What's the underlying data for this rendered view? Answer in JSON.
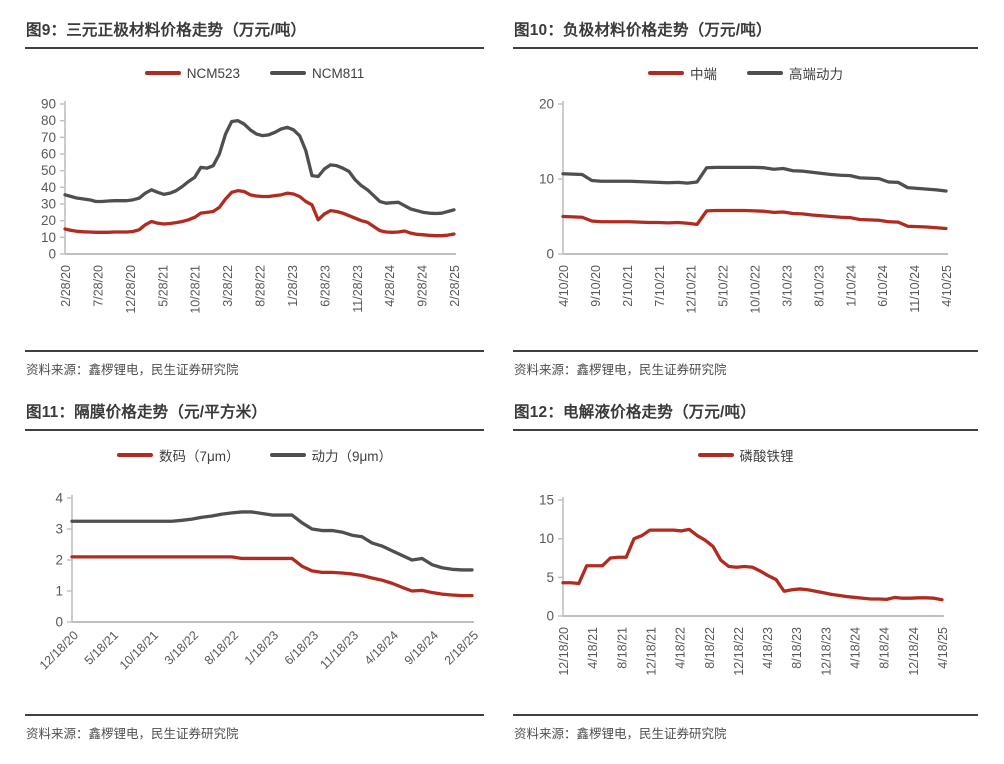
{
  "colors": {
    "red_series": "#B22B20",
    "dark_series": "#4F4F4F",
    "axis_line": "#BFBFBF",
    "tick_label": "#595959",
    "title_text": "#3A3A3A",
    "rule": "#404040",
    "source_text": "#4F4F4F"
  },
  "figures": [
    {
      "title": "图9：三元正极材料价格走势（万元/吨）",
      "source": "资料来源：鑫椤锂电，民生证券研究院"
    },
    {
      "title": "图10：负极材料价格走势（万元/吨）",
      "source": "资料来源：鑫椤锂电，民生证券研究院"
    },
    {
      "title": "图11：隔膜价格走势（元/平方米）",
      "source": "资料来源：鑫椤锂电，民生证券研究院"
    },
    {
      "title": "图12：电解液价格走势（万元/吨）",
      "source": "资料来源：鑫椤锂电，民生证券研究院"
    }
  ],
  "chart_data": [
    {
      "type": "line",
      "title": "图9：三元正极材料价格走势（万元/吨）",
      "categories": [
        "2/28/20",
        "7/28/20",
        "12/28/20",
        "5/28/21",
        "10/28/21",
        "3/28/22",
        "8/28/22",
        "1/28/23",
        "6/28/23",
        "11/28/23",
        "4/28/24",
        "9/28/24",
        "2/28/25"
      ],
      "series": [
        {
          "name": "NCM523",
          "color": "#B22B20",
          "values": [
            15,
            14.2,
            13.6,
            13.3,
            13.2,
            13,
            13,
            13,
            13.2,
            13.2,
            13.2,
            13.5,
            14.5,
            17.5,
            19.5,
            18.5,
            18,
            18.3,
            18.8,
            19.5,
            20.5,
            22,
            24.5,
            25,
            25.5,
            28,
            33,
            37,
            38,
            37.5,
            35.5,
            34.8,
            34.5,
            34.5,
            35,
            35.5,
            36.5,
            36,
            34.5,
            31.5,
            29.5,
            20.5,
            24,
            26,
            25.5,
            24.5,
            23,
            21.5,
            20,
            19,
            16.5,
            14,
            13.2,
            13,
            13.2,
            13.8,
            12.5,
            11.8,
            11.5,
            11.2,
            11,
            11,
            11.3,
            12
          ]
        },
        {
          "name": "NCM811",
          "color": "#4F4F4F",
          "values": [
            35.5,
            34.5,
            33.5,
            33,
            32.5,
            31.5,
            31.5,
            31.8,
            32,
            32,
            32,
            32.5,
            33.5,
            36.5,
            38.5,
            37,
            35.8,
            36.5,
            38,
            40.5,
            43.5,
            46,
            52,
            51.5,
            53,
            60,
            72,
            79.5,
            80,
            78,
            74.5,
            72,
            71,
            71.5,
            73,
            75,
            76,
            74.5,
            71,
            62,
            47,
            46.5,
            51,
            53.5,
            53,
            51.5,
            49.5,
            44.5,
            41,
            38.5,
            35,
            31.5,
            30.5,
            30.8,
            31,
            29,
            27,
            26,
            25,
            24.5,
            24.3,
            24.5,
            25.5,
            26.5
          ]
        }
      ],
      "ylim": [
        0,
        90
      ],
      "yticks": [
        0,
        10,
        20,
        30,
        40,
        50,
        60,
        70,
        80,
        90
      ],
      "xlabel_rotate": 90,
      "grid": false,
      "legend_position": "top",
      "margins": {
        "l": 40,
        "r": 30,
        "t": 20,
        "b": 82
      }
    },
    {
      "type": "line",
      "title": "图10：负极材料价格走势（万元/吨）",
      "categories": [
        "4/10/20",
        "9/10/20",
        "2/10/21",
        "7/10/21",
        "12/10/21",
        "5/10/22",
        "10/10/22",
        "3/10/23",
        "8/10/23",
        "1/10/24",
        "6/10/24",
        "11/10/24",
        "4/10/25"
      ],
      "series": [
        {
          "name": "中端",
          "color": "#B22B20",
          "values": [
            5,
            4.95,
            4.9,
            4.4,
            4.3,
            4.3,
            4.3,
            4.3,
            4.25,
            4.2,
            4.2,
            4.15,
            4.2,
            4.1,
            3.95,
            5.75,
            5.8,
            5.8,
            5.8,
            5.8,
            5.75,
            5.7,
            5.55,
            5.6,
            5.4,
            5.35,
            5.2,
            5.1,
            5,
            4.9,
            4.85,
            4.6,
            4.55,
            4.5,
            4.3,
            4.25,
            3.7,
            3.65,
            3.6,
            3.5,
            3.4
          ]
        },
        {
          "name": "高端动力",
          "color": "#4F4F4F",
          "values": [
            10.7,
            10.65,
            10.6,
            9.8,
            9.7,
            9.7,
            9.7,
            9.7,
            9.65,
            9.6,
            9.55,
            9.5,
            9.55,
            9.45,
            9.6,
            11.5,
            11.55,
            11.55,
            11.55,
            11.55,
            11.55,
            11.5,
            11.3,
            11.4,
            11.1,
            11.05,
            10.9,
            10.75,
            10.6,
            10.5,
            10.45,
            10.15,
            10.1,
            10.05,
            9.6,
            9.55,
            8.85,
            8.75,
            8.65,
            8.55,
            8.4
          ]
        }
      ],
      "ylim": [
        0,
        20
      ],
      "yticks": [
        0,
        10,
        20
      ],
      "xlabel_rotate": 90,
      "grid": false,
      "legend_position": "top",
      "margins": {
        "l": 50,
        "r": 32,
        "t": 20,
        "b": 82
      }
    },
    {
      "type": "line",
      "title": "图11：隔膜价格走势（元/平方米）",
      "categories": [
        "12/18/20",
        "5/18/21",
        "10/18/21",
        "3/18/22",
        "8/18/22",
        "1/18/23",
        "6/18/23",
        "11/18/23",
        "4/18/24",
        "9/18/24",
        "2/18/25"
      ],
      "series": [
        {
          "name": "数码（7μm）",
          "color": "#B22B20",
          "values": [
            2.1,
            2.1,
            2.1,
            2.1,
            2.1,
            2.1,
            2.1,
            2.1,
            2.1,
            2.1,
            2.1,
            2.1,
            2.1,
            2.1,
            2.1,
            2.1,
            2.1,
            2.05,
            2.05,
            2.05,
            2.05,
            2.05,
            2.05,
            1.8,
            1.65,
            1.6,
            1.6,
            1.58,
            1.55,
            1.5,
            1.42,
            1.35,
            1.25,
            1.12,
            1,
            1.02,
            0.95,
            0.9,
            0.87,
            0.85,
            0.85
          ]
        },
        {
          "name": "动力（9μm）",
          "color": "#4F4F4F",
          "values": [
            3.25,
            3.25,
            3.25,
            3.25,
            3.25,
            3.25,
            3.25,
            3.25,
            3.25,
            3.25,
            3.25,
            3.28,
            3.32,
            3.38,
            3.42,
            3.48,
            3.52,
            3.55,
            3.55,
            3.5,
            3.45,
            3.45,
            3.45,
            3.2,
            3,
            2.95,
            2.95,
            2.9,
            2.8,
            2.75,
            2.55,
            2.45,
            2.3,
            2.15,
            2,
            2.05,
            1.85,
            1.75,
            1.7,
            1.68,
            1.68
          ]
        }
      ],
      "ylim": [
        0,
        4
      ],
      "yticks": [
        0,
        1,
        2,
        3,
        4
      ],
      "xlabel_rotate": 45,
      "grid": false,
      "legend_position": "top",
      "margins": {
        "l": 47,
        "r": 12,
        "t": 32,
        "b": 84
      }
    },
    {
      "type": "line",
      "title": "图12：电解液价格走势（万元/吨）",
      "categories": [
        "12/18/20",
        "4/18/21",
        "8/18/21",
        "12/18/21",
        "4/18/22",
        "8/18/22",
        "12/18/22",
        "4/18/23",
        "8/18/23",
        "12/18/23",
        "4/18/24",
        "8/18/24",
        "12/18/24",
        "4/18/25"
      ],
      "series": [
        {
          "name": "磷酸铁锂",
          "color": "#B22B20",
          "values": [
            4.3,
            4.3,
            4.2,
            6.5,
            6.5,
            6.5,
            7.5,
            7.6,
            7.6,
            10,
            10.4,
            11.1,
            11.1,
            11.1,
            11.1,
            11,
            11.2,
            10.4,
            9.8,
            9,
            7.2,
            6.4,
            6.3,
            6.4,
            6.3,
            5.8,
            5.2,
            4.7,
            3.2,
            3.4,
            3.5,
            3.4,
            3.2,
            3,
            2.8,
            2.65,
            2.5,
            2.4,
            2.3,
            2.2,
            2.2,
            2.15,
            2.4,
            2.3,
            2.3,
            2.35,
            2.35,
            2.3,
            2.1
          ]
        }
      ],
      "ylim": [
        0,
        15
      ],
      "yticks": [
        0,
        5,
        10,
        15
      ],
      "xlabel_rotate": 90,
      "grid": false,
      "legend_position": "top",
      "margins": {
        "l": 50,
        "r": 36,
        "t": 34,
        "b": 90
      }
    }
  ]
}
